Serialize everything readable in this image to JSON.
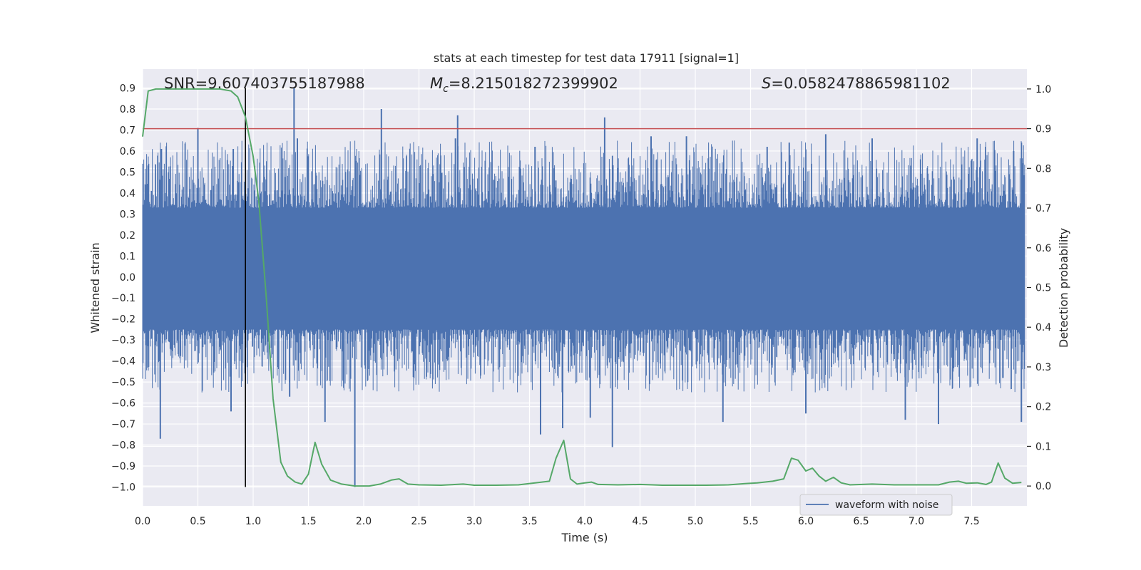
{
  "chart_data": {
    "type": "line",
    "title": "stats at each timestep for test data 17911 [signal=1]",
    "xlabel": "Time (s)",
    "ylabel_left": "Whitened strain",
    "ylabel_right": "Detection probability",
    "xlim": [
      0.0,
      8.0
    ],
    "ylim_left": [
      -1.09,
      0.99
    ],
    "ylim_right": [
      -0.05,
      1.05
    ],
    "grid": true,
    "legend_position": "bottom-right",
    "x_ticks": [
      0.0,
      0.5,
      1.0,
      1.5,
      2.0,
      2.5,
      3.0,
      3.5,
      4.0,
      4.5,
      5.0,
      5.5,
      6.0,
      6.5,
      7.0,
      7.5
    ],
    "x_tick_labels": [
      "0.0",
      "0.5",
      "1.0",
      "1.5",
      "2.0",
      "2.5",
      "3.0",
      "3.5",
      "4.0",
      "4.5",
      "5.0",
      "5.5",
      "6.0",
      "6.5",
      "7.0",
      "7.5"
    ],
    "y_left_ticks": [
      -1.0,
      -0.9,
      -0.8,
      -0.7,
      -0.6,
      -0.5,
      -0.4,
      -0.3,
      -0.2,
      -0.1,
      0.0,
      0.1,
      0.2,
      0.3,
      0.4,
      0.5,
      0.6,
      0.7,
      0.8,
      0.9
    ],
    "y_left_tick_labels": [
      "−1.0",
      "−0.9",
      "−0.8",
      "−0.7",
      "−0.6",
      "−0.5",
      "−0.4",
      "−0.3",
      "−0.2",
      "−0.1",
      "0.0",
      "0.1",
      "0.2",
      "0.3",
      "0.4",
      "0.5",
      "0.6",
      "0.7",
      "0.8",
      "0.9"
    ],
    "y_right_ticks": [
      0.0,
      0.1,
      0.2,
      0.3,
      0.4,
      0.5,
      0.6,
      0.7,
      0.8,
      0.9,
      1.0
    ],
    "y_right_tick_labels": [
      "0.0",
      "0.1",
      "0.2",
      "0.3",
      "0.4",
      "0.5",
      "0.6",
      "0.7",
      "0.8",
      "0.9",
      "1.0"
    ],
    "annotations": {
      "snr": "SNR=9.607403755187988",
      "mc_symbol": "M",
      "mc_subscript": "c",
      "mc_value": "=8.215018272399902",
      "s_symbol": "S",
      "s_value": "=0.0582478865981102"
    },
    "threshold_line": {
      "axis": "right",
      "y": 0.9,
      "color": "#c44e52"
    },
    "vertical_marker": {
      "x": 0.93,
      "y_range": [
        -1.0,
        0.9
      ],
      "color": "#000000"
    },
    "series": [
      {
        "name": "waveform with noise",
        "axis": "left",
        "color": "#4c72b0",
        "kind": "dense-noise",
        "x_range": [
          0.0,
          7.98
        ],
        "dense_band": [
          -0.25,
          0.33
        ],
        "typical_envelope": [
          -0.45,
          0.55
        ],
        "peaks": [
          {
            "x": 0.08,
            "y": 0.41
          },
          {
            "x": 0.16,
            "y": -0.77
          },
          {
            "x": 0.17,
            "y": 0.61
          },
          {
            "x": 0.5,
            "y": 0.71
          },
          {
            "x": 0.82,
            "y": 0.61
          },
          {
            "x": 0.8,
            "y": -0.64
          },
          {
            "x": 1.37,
            "y": 0.9
          },
          {
            "x": 1.4,
            "y": 0.66
          },
          {
            "x": 1.33,
            "y": -0.57
          },
          {
            "x": 1.65,
            "y": -0.69
          },
          {
            "x": 1.92,
            "y": -1.0
          },
          {
            "x": 2.16,
            "y": 0.8
          },
          {
            "x": 2.85,
            "y": 0.77
          },
          {
            "x": 2.83,
            "y": 0.66
          },
          {
            "x": 3.55,
            "y": 0.62
          },
          {
            "x": 3.6,
            "y": -0.75
          },
          {
            "x": 3.8,
            "y": -0.72
          },
          {
            "x": 4.18,
            "y": 0.76
          },
          {
            "x": 4.05,
            "y": -0.67
          },
          {
            "x": 4.25,
            "y": -0.81
          },
          {
            "x": 4.6,
            "y": 0.67
          },
          {
            "x": 4.92,
            "y": 0.67
          },
          {
            "x": 5.25,
            "y": -0.69
          },
          {
            "x": 5.65,
            "y": 0.62
          },
          {
            "x": 5.85,
            "y": 0.64
          },
          {
            "x": 6.0,
            "y": -0.65
          },
          {
            "x": 6.18,
            "y": 0.68
          },
          {
            "x": 6.6,
            "y": 0.66
          },
          {
            "x": 6.9,
            "y": -0.68
          },
          {
            "x": 7.2,
            "y": -0.7
          },
          {
            "x": 7.55,
            "y": 0.66
          },
          {
            "x": 7.88,
            "y": 0.6
          },
          {
            "x": 7.95,
            "y": -0.69
          }
        ]
      },
      {
        "name": "",
        "axis": "right",
        "color": "#55a868",
        "x": [
          0.0,
          0.05,
          0.12,
          0.2,
          0.3,
          0.4,
          0.5,
          0.6,
          0.7,
          0.8,
          0.86,
          0.93,
          1.0,
          1.05,
          1.12,
          1.18,
          1.25,
          1.31,
          1.38,
          1.44,
          1.5,
          1.56,
          1.62,
          1.7,
          1.8,
          1.92,
          2.05,
          2.15,
          2.25,
          2.32,
          2.4,
          2.5,
          2.7,
          2.9,
          3.0,
          3.2,
          3.4,
          3.55,
          3.68,
          3.74,
          3.81,
          3.87,
          3.93,
          4.0,
          4.06,
          4.12,
          4.3,
          4.5,
          4.7,
          4.9,
          5.1,
          5.3,
          5.45,
          5.56,
          5.7,
          5.8,
          5.87,
          5.93,
          6.0,
          6.06,
          6.12,
          6.18,
          6.25,
          6.32,
          6.4,
          6.6,
          6.8,
          7.0,
          7.2,
          7.3,
          7.38,
          7.45,
          7.55,
          7.63,
          7.68,
          7.74,
          7.8,
          7.87,
          7.95
        ],
        "y": [
          0.88,
          0.995,
          1.0,
          1.0,
          1.0,
          1.0,
          1.0,
          1.0,
          1.0,
          0.995,
          0.98,
          0.93,
          0.83,
          0.72,
          0.47,
          0.22,
          0.06,
          0.025,
          0.01,
          0.005,
          0.03,
          0.11,
          0.055,
          0.015,
          0.005,
          0.0,
          0.0,
          0.005,
          0.015,
          0.018,
          0.005,
          0.003,
          0.002,
          0.005,
          0.002,
          0.002,
          0.003,
          0.008,
          0.012,
          0.07,
          0.115,
          0.018,
          0.005,
          0.008,
          0.01,
          0.004,
          0.003,
          0.004,
          0.002,
          0.002,
          0.002,
          0.003,
          0.006,
          0.008,
          0.012,
          0.018,
          0.07,
          0.065,
          0.038,
          0.045,
          0.025,
          0.012,
          0.022,
          0.008,
          0.003,
          0.005,
          0.003,
          0.003,
          0.003,
          0.01,
          0.012,
          0.007,
          0.008,
          0.004,
          0.01,
          0.058,
          0.02,
          0.007,
          0.009
        ]
      }
    ]
  },
  "legend": {
    "label": "waveform with noise",
    "color": "#4c72b0"
  }
}
